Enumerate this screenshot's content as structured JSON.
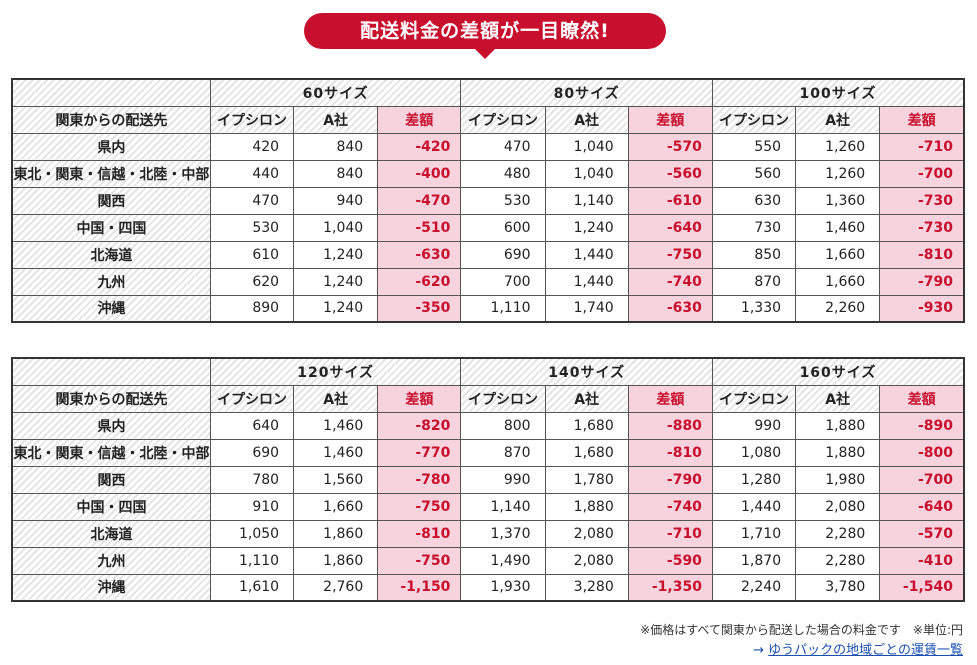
{
  "banner": {
    "title": "配送料金の差額が一目瞭然!"
  },
  "tables": [
    {
      "region_header": "関東からの配送先",
      "groups": [
        {
          "size": "60サイズ",
          "cols": [
            "イプシロン",
            "A社",
            "差額"
          ]
        },
        {
          "size": "80サイズ",
          "cols": [
            "イプシロン",
            "A社",
            "差額"
          ]
        },
        {
          "size": "100サイズ",
          "cols": [
            "イプシロン",
            "A社",
            "差額"
          ]
        }
      ],
      "rows": [
        {
          "region": "県内",
          "cells": [
            "420",
            "840",
            "-420",
            "470",
            "1,040",
            "-570",
            "550",
            "1,260",
            "-710"
          ]
        },
        {
          "region": "東北・関東・信越・北陸・中部",
          "cells": [
            "440",
            "840",
            "-400",
            "480",
            "1,040",
            "-560",
            "560",
            "1,260",
            "-700"
          ]
        },
        {
          "region": "関西",
          "cells": [
            "470",
            "940",
            "-470",
            "530",
            "1,140",
            "-610",
            "630",
            "1,360",
            "-730"
          ]
        },
        {
          "region": "中国・四国",
          "cells": [
            "530",
            "1,040",
            "-510",
            "600",
            "1,240",
            "-640",
            "730",
            "1,460",
            "-730"
          ]
        },
        {
          "region": "北海道",
          "cells": [
            "610",
            "1,240",
            "-630",
            "690",
            "1,440",
            "-750",
            "850",
            "1,660",
            "-810"
          ]
        },
        {
          "region": "九州",
          "cells": [
            "620",
            "1,240",
            "-620",
            "700",
            "1,440",
            "-740",
            "870",
            "1,660",
            "-790"
          ]
        },
        {
          "region": "沖縄",
          "cells": [
            "890",
            "1,240",
            "-350",
            "1,110",
            "1,740",
            "-630",
            "1,330",
            "2,260",
            "-930"
          ]
        }
      ]
    },
    {
      "region_header": "関東からの配送先",
      "groups": [
        {
          "size": "120サイズ",
          "cols": [
            "イプシロン",
            "A社",
            "差額"
          ]
        },
        {
          "size": "140サイズ",
          "cols": [
            "イプシロン",
            "A社",
            "差額"
          ]
        },
        {
          "size": "160サイズ",
          "cols": [
            "イプシロン",
            "A社",
            "差額"
          ]
        }
      ],
      "rows": [
        {
          "region": "県内",
          "cells": [
            "640",
            "1,460",
            "-820",
            "800",
            "1,680",
            "-880",
            "990",
            "1,880",
            "-890"
          ]
        },
        {
          "region": "東北・関東・信越・北陸・中部",
          "cells": [
            "690",
            "1,460",
            "-770",
            "870",
            "1,680",
            "-810",
            "1,080",
            "1,880",
            "-800"
          ]
        },
        {
          "region": "関西",
          "cells": [
            "780",
            "1,560",
            "-780",
            "990",
            "1,780",
            "-790",
            "1,280",
            "1,980",
            "-700"
          ]
        },
        {
          "region": "中国・四国",
          "cells": [
            "910",
            "1,660",
            "-750",
            "1,140",
            "1,880",
            "-740",
            "1,440",
            "2,080",
            "-640"
          ]
        },
        {
          "region": "北海道",
          "cells": [
            "1,050",
            "1,860",
            "-810",
            "1,370",
            "2,080",
            "-710",
            "1,710",
            "2,280",
            "-570"
          ]
        },
        {
          "region": "九州",
          "cells": [
            "1,110",
            "1,860",
            "-750",
            "1,490",
            "2,080",
            "-590",
            "1,870",
            "2,280",
            "-410"
          ]
        },
        {
          "region": "沖縄",
          "cells": [
            "1,610",
            "2,760",
            "-1,150",
            "1,930",
            "3,280",
            "-1,350",
            "2,240",
            "3,780",
            "-1,540"
          ]
        }
      ]
    }
  ],
  "footer": {
    "note": "※価格はすべて関東から配送した場合の料金です　※単位:円",
    "arrow": "→",
    "link_text": "ゆうパックの地域ごとの運賃一覧"
  }
}
